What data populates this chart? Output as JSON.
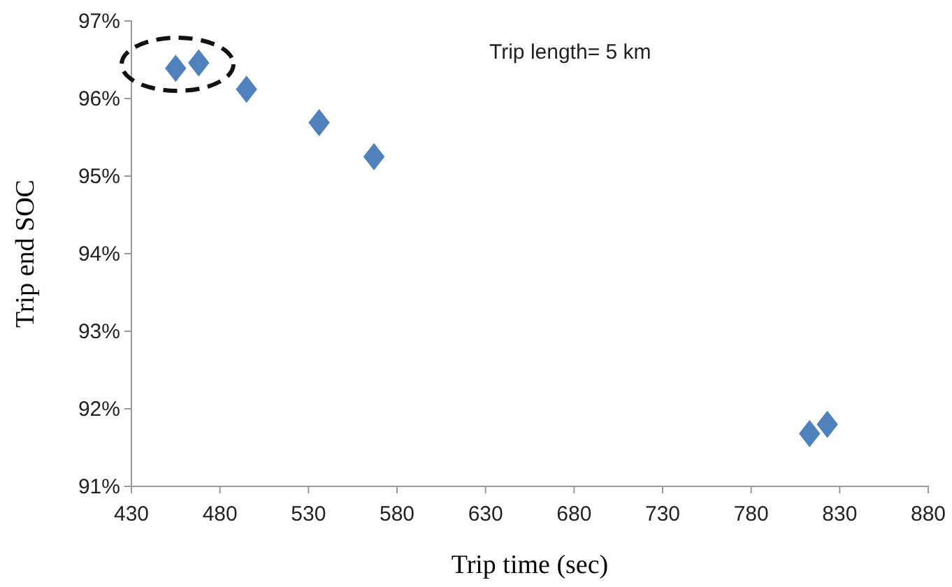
{
  "chart_data": {
    "type": "scatter",
    "xlabel": "Trip time (sec)",
    "ylabel": "Trip end SOC",
    "annotations": [
      "Trip length= 5 km"
    ],
    "x": [
      455,
      468,
      495,
      536,
      567,
      813,
      823
    ],
    "values": [
      96.39,
      96.46,
      96.12,
      95.69,
      95.25,
      91.68,
      91.8
    ],
    "color": "#4f81bd",
    "marker": "diamond",
    "xlim": [
      430,
      880
    ],
    "xticks": [
      430,
      480,
      530,
      580,
      630,
      680,
      730,
      780,
      830,
      880
    ],
    "ylim": [
      91,
      97
    ],
    "yticks": [
      {
        "value": 91,
        "label": "91%"
      },
      {
        "value": 92,
        "label": "92%"
      },
      {
        "value": 93,
        "label": "93%"
      },
      {
        "value": 94,
        "label": "94%"
      },
      {
        "value": 95,
        "label": "95%"
      },
      {
        "value": 96,
        "label": "96%"
      },
      {
        "value": 97,
        "label": "97%"
      }
    ]
  }
}
